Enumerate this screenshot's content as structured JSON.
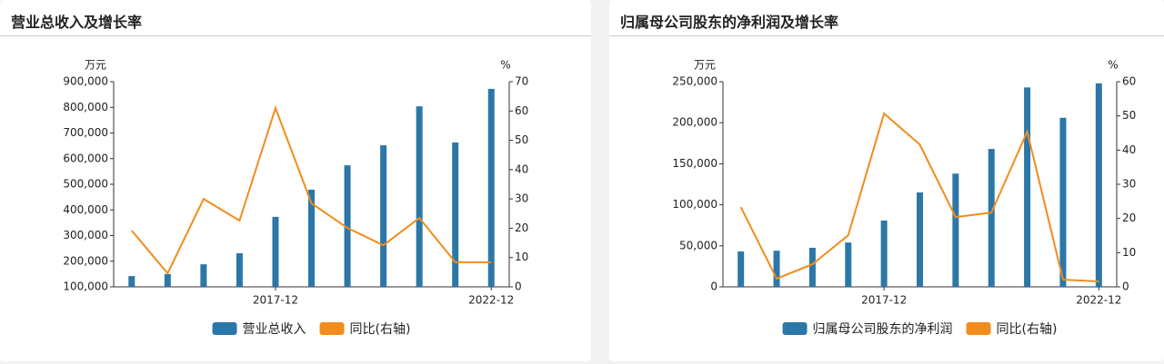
{
  "chart_data": [
    {
      "type": "bar_line",
      "title": "营业总收入及增长率",
      "y_label": "万元",
      "y2_label": "%",
      "categories": [
        null,
        null,
        null,
        null,
        "2017-12",
        null,
        null,
        null,
        null,
        null,
        "2022-12"
      ],
      "series": [
        {
          "name": "营业总收入",
          "type": "bar",
          "color": "#2b77a8",
          "values": [
            142000,
            150000,
            188000,
            231000,
            373000,
            479000,
            574000,
            652000,
            804000,
            663000,
            872000
          ]
        },
        {
          "name": "同比(右轴)",
          "type": "line",
          "axis": "y2",
          "color": "#f28c1c",
          "values": [
            19.2,
            4.6,
            30,
            22.6,
            61,
            28.5,
            20.1,
            14.2,
            23.5,
            8.4,
            8.4
          ]
        }
      ],
      "ylim": [
        100000,
        900000
      ],
      "yticks": [
        {
          "value": 100000,
          "label": "100,000"
        },
        {
          "value": 200000,
          "label": "200,000"
        },
        {
          "value": 300000,
          "label": "300,000"
        },
        {
          "value": 400000,
          "label": "400,000"
        },
        {
          "value": 500000,
          "label": "500,000"
        },
        {
          "value": 600000,
          "label": "600,000"
        },
        {
          "value": 700000,
          "label": "700,000"
        },
        {
          "value": 800000,
          "label": "800,000"
        },
        {
          "value": 900000,
          "label": "900,000"
        }
      ],
      "y2lim": [
        0,
        70
      ],
      "y2ticks": [
        0,
        10,
        20,
        30,
        40,
        50,
        60,
        70
      ],
      "grid": false
    },
    {
      "type": "bar_line",
      "title": "归属母公司股东的净利润及增长率",
      "y_label": "万元",
      "y2_label": "%",
      "categories": [
        null,
        null,
        null,
        null,
        "2017-12",
        null,
        null,
        null,
        null,
        null,
        "2022-12"
      ],
      "series": [
        {
          "name": "归属母公司股东的净利润",
          "type": "bar",
          "color": "#2b77a8",
          "values": [
            43100,
            44000,
            47600,
            54000,
            80800,
            115000,
            138000,
            168000,
            243000,
            206000,
            248000
          ]
        },
        {
          "name": "同比(右轴)",
          "type": "line",
          "axis": "y2",
          "color": "#f28c1c",
          "values": [
            23.3,
            2.4,
            6.6,
            15.1,
            50.7,
            41.6,
            20.4,
            21.7,
            45.4,
            2.1,
            1.6
          ]
        }
      ],
      "ylim": [
        0,
        250000
      ],
      "yticks": [
        0,
        {
          "value": 50000,
          "label": "50,000"
        },
        {
          "value": 100000,
          "label": "100,000"
        },
        {
          "value": 150000,
          "label": "150,000"
        },
        {
          "value": 200000,
          "label": "200,000"
        },
        {
          "value": 250000,
          "label": "250,000"
        }
      ],
      "y2lim": [
        0,
        60
      ],
      "y2ticks": [
        0,
        10,
        20,
        30,
        40,
        50,
        60
      ],
      "grid": false
    }
  ]
}
